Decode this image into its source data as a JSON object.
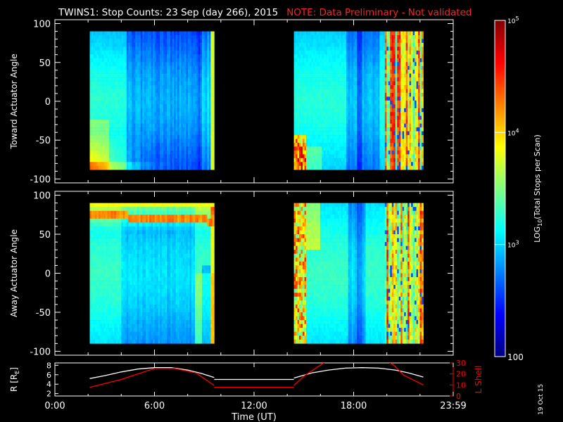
{
  "header": {
    "title": "TWINS1: Stop Counts: 23 Sep (day 266), 2015",
    "note": "NOTE: Data Preliminary - Not validated"
  },
  "side_date": "19 Oct 15",
  "colors": {
    "background": "#000000",
    "text": "#ffffff",
    "note": "#ff2020",
    "lshell": "#ff0000",
    "radius": "#ffffff",
    "colormap": [
      "#00007f",
      "#0000ff",
      "#007fff",
      "#00ffff",
      "#7fff7f",
      "#ffff00",
      "#ff7f00",
      "#ff0000",
      "#7f0000"
    ]
  },
  "chart_data": [
    {
      "id": "toward",
      "type": "heatmap",
      "ylabel": "Toward Actuator Angle",
      "ylim": [
        -105,
        105
      ],
      "yticks": [
        100,
        50,
        0,
        -50,
        -100
      ],
      "xlim": [
        0,
        24
      ],
      "segments": [
        {
          "t_start": 2.1,
          "t_end": 9.6,
          "angle_range": [
            -88,
            90
          ]
        },
        {
          "t_start": 14.4,
          "t_end": 22.2,
          "angle_range": [
            -88,
            90
          ]
        }
      ]
    },
    {
      "id": "away",
      "type": "heatmap",
      "ylabel": "Away Actuator Angle",
      "ylim": [
        -105,
        105
      ],
      "yticks": [
        100,
        50,
        0,
        -50,
        -100
      ],
      "xlim": [
        0,
        24
      ],
      "segments": [
        {
          "t_start": 2.1,
          "t_end": 9.6,
          "angle_range": [
            -90,
            90
          ]
        },
        {
          "t_start": 14.4,
          "t_end": 22.2,
          "angle_range": [
            -90,
            90
          ]
        }
      ]
    },
    {
      "id": "orbit",
      "type": "line",
      "ylabel": "R [R",
      "ylabel_sub": "E",
      "ylabel_end": "]",
      "ylim": [
        1.5,
        8.5
      ],
      "yticks": [
        8,
        6,
        4,
        2
      ],
      "y2label": "L Shell",
      "y2lim": [
        0,
        30
      ],
      "y2ticks": [
        30,
        20,
        10,
        0
      ],
      "xlabel": "Time (UT)",
      "xlim": [
        0,
        24
      ],
      "xticks": [
        0,
        6,
        12,
        18,
        24
      ],
      "xticklabels": [
        "0:00",
        "6:00",
        "12:00",
        "18:00",
        "23:59"
      ],
      "series": [
        {
          "axis": "left",
          "segments": [
            {
              "x": [
                2.1,
                3.0,
                4.0,
                5.0,
                6.0,
                6.5,
                7.0,
                8.0,
                8.8,
                9.6
              ],
              "y": [
                5.2,
                5.8,
                6.6,
                7.2,
                7.5,
                7.5,
                7.5,
                7.0,
                6.3,
                5.4
              ]
            },
            {
              "x": [
                9.6,
                14.4
              ],
              "y": [
                5.0,
                5.0
              ]
            },
            {
              "x": [
                14.4,
                15.5,
                16.5,
                17.5,
                18.5,
                19.5,
                20.5,
                21.3,
                22.2
              ],
              "y": [
                5.3,
                6.4,
                7.0,
                7.4,
                7.5,
                7.4,
                7.0,
                6.4,
                5.5
              ]
            }
          ]
        },
        {
          "axis": "right",
          "segments": [
            {
              "x": [
                2.1,
                4.0,
                6.0,
                7.2,
                8.5,
                9.6
              ],
              "y": [
                7.8,
                15,
                25,
                25,
                21,
                9.5
              ]
            },
            {
              "x": [
                9.6,
                14.4
              ],
              "y": [
                7.8,
                7.8
              ]
            },
            {
              "x": [
                14.4,
                15.0,
                16.2,
                16.6
              ],
              "y": [
                9.5,
                18,
                30,
                34
              ]
            },
            {
              "x": [
                19.8,
                20.5,
                21.0,
                22.2
              ],
              "y": [
                34,
                27,
                19,
                10
              ]
            }
          ]
        }
      ]
    },
    {
      "id": "colorbar",
      "type": "heatmap",
      "label": "LOG",
      "label_sub": "10",
      "label_tail": "(Total Stops per Scan)",
      "scale": "log",
      "range": [
        100,
        100000
      ],
      "ticks": [
        {
          "base": "10",
          "exp": "5",
          "value": 100000
        },
        {
          "base": "10",
          "exp": "4",
          "value": 10000
        },
        {
          "base": "10",
          "exp": "3",
          "value": 1000
        },
        {
          "base": "100",
          "exp": "",
          "value": 100
        }
      ]
    }
  ]
}
